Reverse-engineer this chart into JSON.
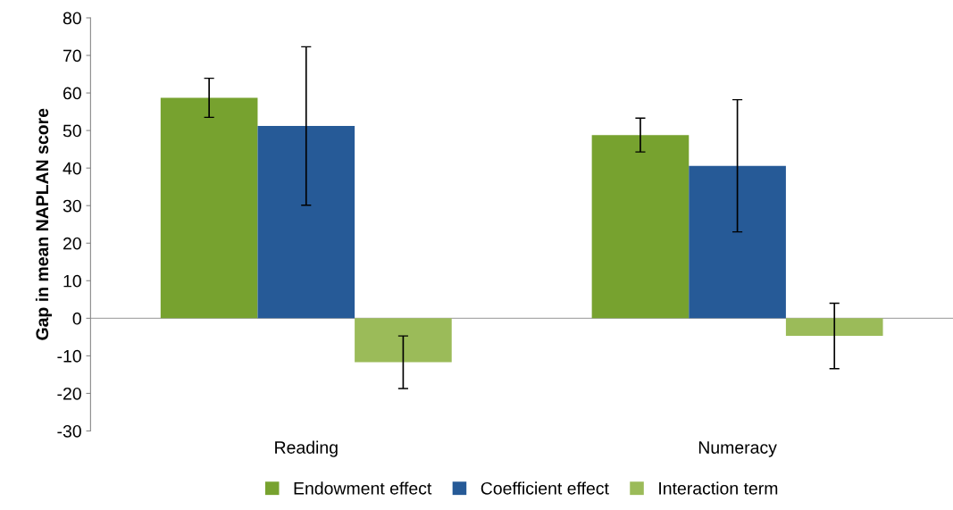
{
  "chart_data": {
    "type": "bar",
    "ylabel": "Gap in mean NAPLAN score",
    "categories": [
      "Reading",
      "Numeracy"
    ],
    "series": [
      {
        "name": "Endowment effect",
        "color": "#77a22f",
        "values": [
          58.7,
          48.8
        ],
        "errors": [
          5.2,
          4.5
        ]
      },
      {
        "name": "Coefficient effect",
        "color": "#265a97",
        "values": [
          51.2,
          40.6
        ],
        "errors": [
          21.1,
          17.6
        ]
      },
      {
        "name": "Interaction term",
        "color": "#9bbb59",
        "values": [
          -11.7,
          -4.7
        ],
        "errors": [
          7.0,
          8.7
        ]
      }
    ],
    "ylim": [
      -30,
      80
    ],
    "yticks": [
      -30,
      -20,
      -10,
      0,
      10,
      20,
      30,
      40,
      50,
      60,
      70,
      80
    ],
    "grid": false,
    "legend": "bottom",
    "ref_lines": [
      {
        "axis": "y",
        "value": 0,
        "color": "#aaaaaa"
      }
    ]
  }
}
